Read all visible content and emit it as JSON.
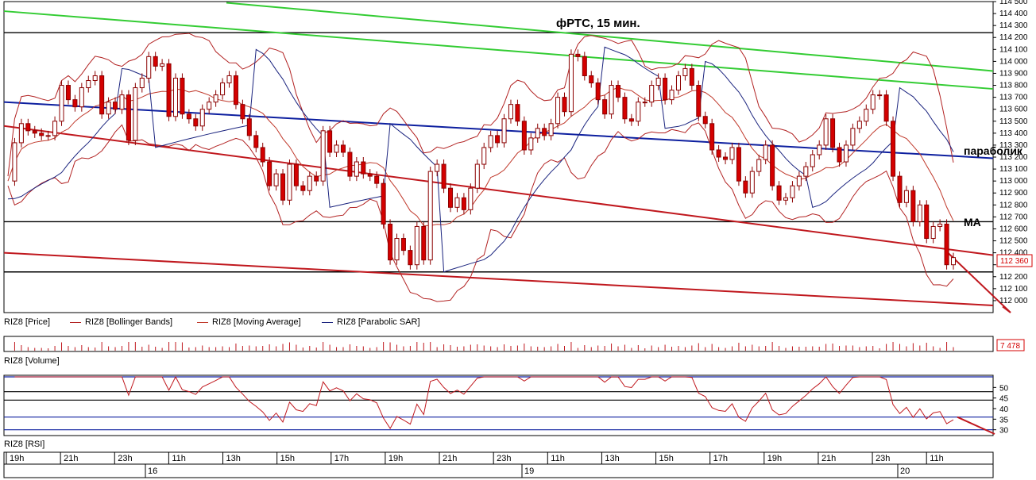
{
  "chart_data": [
    {
      "type": "line",
      "title": "фРТС, 15 мин.",
      "ylim": [
        111900,
        114500
      ],
      "yticks": [
        112000,
        112100,
        112200,
        112300,
        112400,
        112500,
        112600,
        112700,
        112800,
        112900,
        113000,
        113100,
        113200,
        113300,
        113400,
        113500,
        113600,
        113700,
        113800,
        113900,
        114000,
        114100,
        114200,
        114300,
        114400,
        114500
      ],
      "ytick_labels": [
        "112 000",
        "112 100",
        "112 200",
        "112 300",
        "112 400",
        "112 500",
        "112 600",
        "112 700",
        "112 800",
        "112 900",
        "113 000",
        "113 100",
        "113 200",
        "113 300",
        "113 400",
        "113 500",
        "113 600",
        "113 700",
        "113 800",
        "113 900",
        "114 000",
        "114 100",
        "114 200",
        "114 300",
        "114 400",
        "114 500"
      ],
      "last_price_label": "112 360",
      "annotations": [
        "параболик",
        "МА"
      ],
      "series": [
        {
          "name": "RIZ8 [Price]",
          "color": "#d40000"
        },
        {
          "name": "RIZ8 [Bollinger Bands]",
          "color": "#b22222"
        },
        {
          "name": "RIZ8 [Moving Average]",
          "color": "#c0392b"
        },
        {
          "name": "RIZ8 [Parabolic SAR]",
          "color": "#1a237e"
        }
      ],
      "close": [
        113000,
        113320,
        113480,
        113420,
        113400,
        113380,
        113380,
        113500,
        113800,
        113680,
        113620,
        113780,
        113840,
        113880,
        113560,
        113660,
        113600,
        113720,
        113340,
        113780,
        113860,
        114040,
        113960,
        113980,
        113540,
        113860,
        113560,
        113520,
        113460,
        113600,
        113660,
        113720,
        113820,
        113880,
        113640,
        113520,
        113380,
        113280,
        113160,
        112960,
        113060,
        112840,
        113140,
        112960,
        112920,
        113040,
        113000,
        113420,
        113240,
        113300,
        113240,
        113040,
        113160,
        113060,
        113040,
        112980,
        112640,
        112340,
        112520,
        112420,
        112300,
        112620,
        112340,
        113080,
        113140,
        112940,
        112780,
        112860,
        112760,
        112940,
        113140,
        113280,
        113380,
        113320,
        113520,
        113640,
        113500,
        113260,
        113360,
        113440,
        113380,
        113480,
        113700,
        113580,
        114060,
        114040,
        113880,
        113820,
        113680,
        113560,
        113800,
        113700,
        113520,
        113500,
        113660,
        113660,
        113800,
        113860,
        113680,
        113760,
        113880,
        113940,
        113800,
        113540,
        113480,
        113260,
        113200,
        113180,
        113280,
        113000,
        112900,
        113080,
        113180,
        113300,
        112960,
        112840,
        112860,
        112960,
        113040,
        113120,
        113220,
        113300,
        113520,
        113280,
        113160,
        113300,
        113440,
        113500,
        113600,
        113720,
        113720,
        113500,
        113040,
        112820,
        112920,
        112660,
        112800,
        112520,
        112620,
        112640,
        112300,
        112360
      ],
      "volume_label": "7 478",
      "volume_pane_label": "RIZ8 [Volume]"
    },
    {
      "type": "line",
      "title": "",
      "series_name": "RIZ8 [RSI]",
      "yticks": [
        30,
        35,
        40,
        45,
        50
      ],
      "ylim": [
        28,
        55
      ],
      "x_labels": [
        "19h",
        "21h",
        "23h",
        "11h",
        "13h",
        "15h",
        "17h",
        "19h",
        "21h",
        "23h",
        "11h",
        "13h",
        "15h",
        "17h",
        "19h",
        "21h",
        "23h",
        "11h"
      ],
      "day_labels": [
        "16",
        "19",
        "20"
      ]
    }
  ]
}
